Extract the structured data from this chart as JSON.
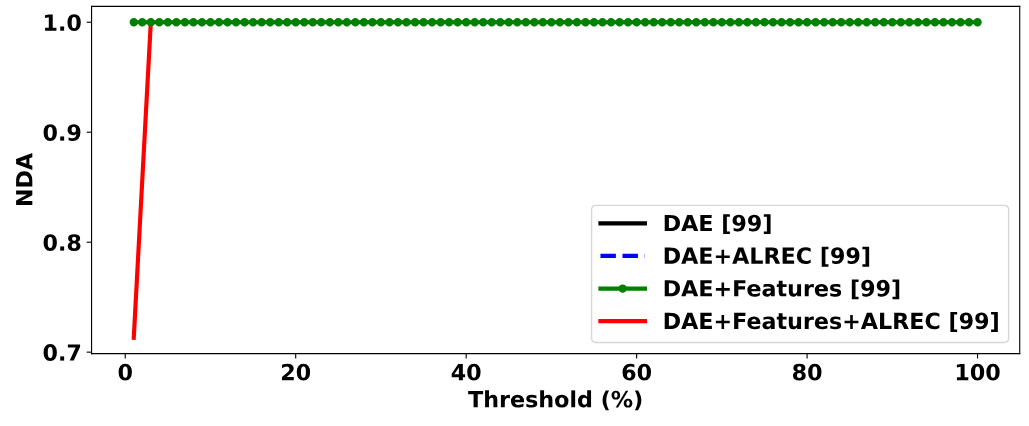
{
  "chart_data": {
    "type": "line",
    "xlabel": "Threshold (%)",
    "ylabel": "NDA",
    "x": [
      1,
      2,
      3,
      4,
      5,
      6,
      7,
      8,
      9,
      10,
      11,
      12,
      13,
      14,
      15,
      16,
      17,
      18,
      19,
      20,
      21,
      22,
      23,
      24,
      25,
      26,
      27,
      28,
      29,
      30,
      31,
      32,
      33,
      34,
      35,
      36,
      37,
      38,
      39,
      40,
      41,
      42,
      43,
      44,
      45,
      46,
      47,
      48,
      49,
      50,
      51,
      52,
      53,
      54,
      55,
      56,
      57,
      58,
      59,
      60,
      61,
      62,
      63,
      64,
      65,
      66,
      67,
      68,
      69,
      70,
      71,
      72,
      73,
      74,
      75,
      76,
      77,
      78,
      79,
      80,
      81,
      82,
      83,
      84,
      85,
      86,
      87,
      88,
      89,
      90,
      91,
      92,
      93,
      94,
      95,
      96,
      97,
      98,
      99,
      100
    ],
    "series": [
      {
        "name": "DAE [99]",
        "color": "#000000",
        "line_style": "solid",
        "marker": "none",
        "values": [
          null,
          null,
          null,
          null,
          null,
          null,
          null,
          null,
          null,
          null,
          null,
          null,
          null,
          null,
          null,
          null,
          null,
          null,
          null,
          null,
          null,
          null,
          null,
          null,
          null,
          null,
          null,
          null,
          null,
          null,
          null,
          null,
          null,
          null,
          null,
          null,
          null,
          null,
          null,
          null,
          null,
          null,
          null,
          null,
          null,
          null,
          null,
          null,
          null,
          null,
          null,
          null,
          null,
          null,
          null,
          null,
          null,
          null,
          null,
          null,
          null,
          null,
          null,
          null,
          null,
          null,
          null,
          null,
          null,
          null,
          null,
          null,
          null,
          null,
          null,
          null,
          null,
          null,
          null,
          null,
          null,
          null,
          null,
          null,
          null,
          null,
          null,
          null,
          null,
          null,
          null,
          null,
          null,
          null,
          null,
          null,
          null,
          null,
          null,
          null
        ]
      },
      {
        "name": "DAE+ALREC [99]",
        "color": "#0000ff",
        "line_style": "dashed",
        "marker": "none",
        "values": [
          null,
          null,
          null,
          null,
          null,
          null,
          null,
          null,
          null,
          null,
          null,
          null,
          null,
          null,
          null,
          null,
          null,
          null,
          null,
          null,
          null,
          null,
          null,
          null,
          null,
          null,
          null,
          null,
          null,
          null,
          null,
          null,
          null,
          null,
          null,
          null,
          null,
          null,
          null,
          null,
          null,
          null,
          null,
          null,
          null,
          null,
          null,
          null,
          null,
          null,
          null,
          null,
          null,
          null,
          null,
          null,
          null,
          null,
          null,
          null,
          null,
          null,
          null,
          null,
          null,
          null,
          null,
          null,
          null,
          null,
          null,
          null,
          null,
          null,
          null,
          null,
          null,
          null,
          null,
          null,
          null,
          null,
          null,
          null,
          null,
          null,
          null,
          null,
          null,
          null,
          null,
          null,
          null,
          null,
          null,
          null,
          null,
          null,
          null,
          null
        ]
      },
      {
        "name": "DAE+Features [99]",
        "color": "#008000",
        "line_style": "solid",
        "marker": "circle",
        "values": [
          1,
          1,
          1,
          1,
          1,
          1,
          1,
          1,
          1,
          1,
          1,
          1,
          1,
          1,
          1,
          1,
          1,
          1,
          1,
          1,
          1,
          1,
          1,
          1,
          1,
          1,
          1,
          1,
          1,
          1,
          1,
          1,
          1,
          1,
          1,
          1,
          1,
          1,
          1,
          1,
          1,
          1,
          1,
          1,
          1,
          1,
          1,
          1,
          1,
          1,
          1,
          1,
          1,
          1,
          1,
          1,
          1,
          1,
          1,
          1,
          1,
          1,
          1,
          1,
          1,
          1,
          1,
          1,
          1,
          1,
          1,
          1,
          1,
          1,
          1,
          1,
          1,
          1,
          1,
          1,
          1,
          1,
          1,
          1,
          1,
          1,
          1,
          1,
          1,
          1,
          1,
          1,
          1,
          1,
          1,
          1,
          1,
          1,
          1,
          1
        ]
      },
      {
        "name": "DAE+Features+ALREC [99]",
        "color": "#ff0000",
        "line_style": "solid",
        "marker": "none",
        "values": [
          0.713,
          0.857,
          1,
          null,
          null,
          null,
          null,
          null,
          null,
          null,
          null,
          null,
          null,
          null,
          null,
          null,
          null,
          null,
          null,
          null,
          null,
          null,
          null,
          null,
          null,
          null,
          null,
          null,
          null,
          null,
          null,
          null,
          null,
          null,
          null,
          null,
          null,
          null,
          null,
          null,
          null,
          null,
          null,
          null,
          null,
          null,
          null,
          null,
          null,
          null,
          null,
          null,
          null,
          null,
          null,
          null,
          null,
          null,
          null,
          null,
          null,
          null,
          null,
          null,
          null,
          null,
          null,
          null,
          null,
          null,
          null,
          null,
          null,
          null,
          null,
          null,
          null,
          null,
          null,
          null,
          null,
          null,
          null,
          null,
          null,
          null,
          null,
          null,
          null,
          null,
          null,
          null,
          null,
          null,
          null,
          null,
          null,
          null,
          null,
          null
        ]
      }
    ],
    "xlim": [
      -3.95,
      104.95
    ],
    "ylim": [
      0.6987,
      1.0144
    ],
    "xticks": [
      0,
      20,
      40,
      60,
      80,
      100
    ],
    "yticks": [
      {
        "value": 0.7,
        "label": "0.7"
      },
      {
        "value": 0.8,
        "label": "0.8"
      },
      {
        "value": 0.9,
        "label": "0.9"
      },
      {
        "value": 1.0,
        "label": "1.0"
      }
    ],
    "grid": false,
    "legend": "lower right"
  }
}
